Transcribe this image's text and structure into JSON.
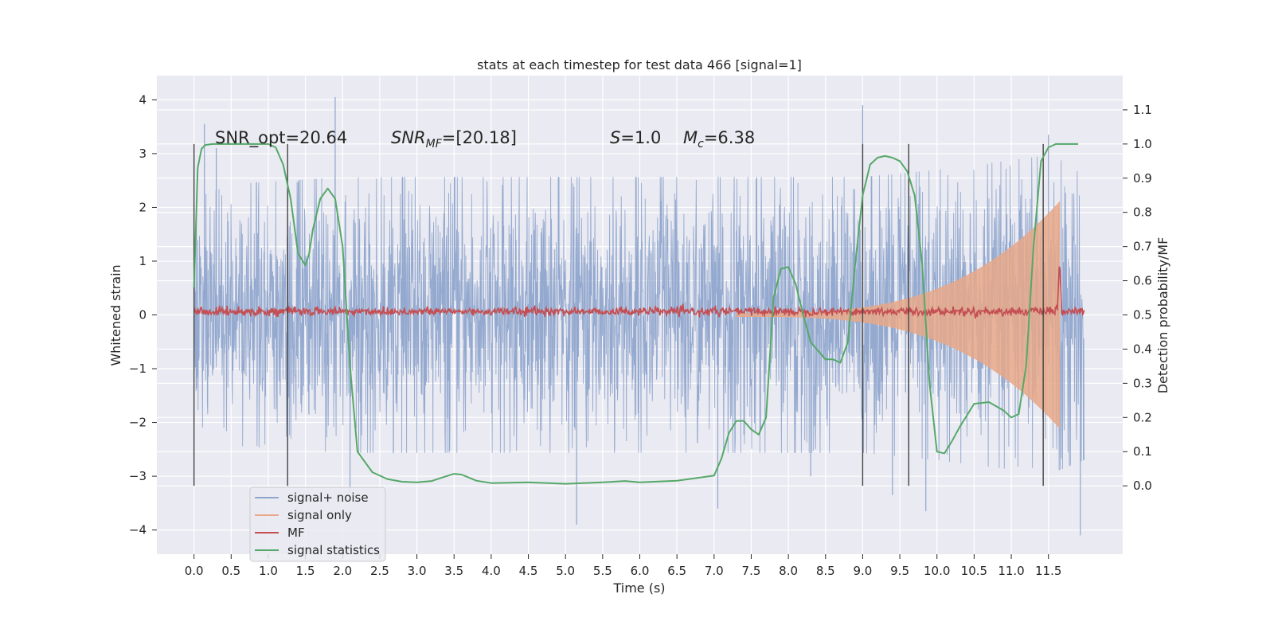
{
  "chart_data": {
    "type": "line",
    "title": "stats at each timestep for test data 466 [signal=1]",
    "xlabel": "Time (s)",
    "ylabel": "Whitened strain",
    "y2label": "Detection probability/MF",
    "xlim": [
      -0.5,
      12.5
    ],
    "ylim": [
      -4.45,
      4.45
    ],
    "y2lim": [
      -0.2,
      1.2
    ],
    "x_ticks": [
      0.0,
      0.5,
      1.0,
      1.5,
      2.0,
      2.5,
      3.0,
      3.5,
      4.0,
      4.5,
      5.0,
      5.5,
      6.0,
      6.5,
      7.0,
      7.5,
      8.0,
      8.5,
      9.0,
      9.5,
      10.0,
      10.5,
      11.0,
      11.5
    ],
    "x_tick_labels": [
      "0.0",
      "0.5",
      "1.0",
      "1.5",
      "2.0",
      "2.5",
      "3.0",
      "3.5",
      "4.0",
      "4.5",
      "5.0",
      "5.5",
      "6.0",
      "6.5",
      "7.0",
      "7.5",
      "8.0",
      "8.5",
      "9.0",
      "9.5",
      "10.0",
      "10.5",
      "11.0",
      "11.5"
    ],
    "y_ticks": [
      4,
      3,
      2,
      1,
      0,
      -1,
      -2,
      -3,
      -4
    ],
    "y_tick_labels": [
      "4",
      "3",
      "2",
      "1",
      "0",
      "−1",
      "−2",
      "−3",
      "−4"
    ],
    "y2_ticks": [
      1.1,
      1.0,
      0.9,
      0.8,
      0.7,
      0.6,
      0.5,
      0.4,
      0.3,
      0.2,
      0.1,
      0.0
    ],
    "y2_tick_labels": [
      "1.1",
      "1.0",
      "0.9",
      "0.8",
      "0.7",
      "0.6",
      "0.5",
      "0.4",
      "0.3",
      "0.2",
      "0.1",
      "0.0"
    ],
    "grid": true,
    "legend_position": "lower-left",
    "annotations": {
      "snr_opt": "SNR_opt=20.64",
      "snr_mf_label": "SNR",
      "snr_mf_sub": "MF",
      "snr_mf_value": "=[20.18]",
      "s_label": "S",
      "s_value": "=1.0",
      "mc_label": "M",
      "mc_sub": "c",
      "mc_value": "=6.38"
    },
    "vertical_markers": [
      0.0,
      1.26,
      9.0,
      9.62,
      11.43
    ],
    "series": [
      {
        "name": "signal+ noise",
        "color": "#8fa5cc",
        "axis": "left",
        "duration": 11.98,
        "envelope": [
          [
            0.0,
            1.6
          ],
          [
            0.5,
            1.8
          ],
          [
            2.0,
            1.9
          ],
          [
            6.0,
            1.9
          ],
          [
            9.0,
            1.9
          ],
          [
            10.0,
            2.0
          ],
          [
            11.5,
            2.2
          ],
          [
            11.98,
            2.0
          ]
        ],
        "peaks": [
          [
            0.14,
            3.55
          ],
          [
            0.3,
            3.1
          ],
          [
            1.9,
            4.05
          ],
          [
            2.1,
            -3.3
          ],
          [
            5.15,
            -3.9
          ],
          [
            7.05,
            -3.6
          ],
          [
            8.3,
            -3.0
          ],
          [
            9.0,
            3.9
          ],
          [
            9.4,
            -3.35
          ],
          [
            9.85,
            -3.65
          ],
          [
            11.5,
            3.35
          ],
          [
            11.93,
            -4.1
          ]
        ]
      },
      {
        "name": "signal only",
        "color": "#e8a888",
        "axis": "left",
        "start": 7.3,
        "end": 11.65,
        "amplitude_at_start": 0.03,
        "amplitude_at_end": 2.1
      },
      {
        "name": "MF",
        "color": "#c44e52",
        "axis": "right",
        "baseline": 0.51,
        "peak_x": 11.65,
        "peak_value": 0.66
      },
      {
        "name": "signal statistics",
        "color": "#55a868",
        "axis": "right",
        "x": [
          0.0,
          0.05,
          0.1,
          0.15,
          0.25,
          0.5,
          0.8,
          1.0,
          1.1,
          1.2,
          1.3,
          1.4,
          1.5,
          1.55,
          1.6,
          1.7,
          1.8,
          1.9,
          2.0,
          2.1,
          2.2,
          2.4,
          2.6,
          2.8,
          3.0,
          3.2,
          3.35,
          3.5,
          3.6,
          3.8,
          4.0,
          4.5,
          5.0,
          5.5,
          5.8,
          6.0,
          6.5,
          7.0,
          7.1,
          7.2,
          7.3,
          7.4,
          7.5,
          7.6,
          7.7,
          7.8,
          7.9,
          8.0,
          8.1,
          8.2,
          8.3,
          8.5,
          8.6,
          8.7,
          8.8,
          8.9,
          9.0,
          9.1,
          9.2,
          9.3,
          9.4,
          9.5,
          9.6,
          9.7,
          9.8,
          9.9,
          10.0,
          10.1,
          10.2,
          10.3,
          10.5,
          10.7,
          10.9,
          11.0,
          11.1,
          11.2,
          11.3,
          11.4,
          11.5,
          11.6,
          11.7,
          11.8,
          11.9
        ],
        "y": [
          0.58,
          0.93,
          0.985,
          0.997,
          1.0,
          1.0,
          1.0,
          1.0,
          0.99,
          0.94,
          0.84,
          0.68,
          0.645,
          0.68,
          0.75,
          0.84,
          0.87,
          0.84,
          0.7,
          0.35,
          0.1,
          0.04,
          0.02,
          0.012,
          0.01,
          0.014,
          0.025,
          0.035,
          0.033,
          0.015,
          0.008,
          0.01,
          0.006,
          0.01,
          0.014,
          0.01,
          0.015,
          0.03,
          0.08,
          0.155,
          0.19,
          0.19,
          0.165,
          0.15,
          0.2,
          0.55,
          0.635,
          0.64,
          0.59,
          0.5,
          0.42,
          0.37,
          0.37,
          0.36,
          0.42,
          0.65,
          0.85,
          0.94,
          0.96,
          0.965,
          0.96,
          0.95,
          0.92,
          0.85,
          0.65,
          0.3,
          0.1,
          0.095,
          0.13,
          0.17,
          0.24,
          0.245,
          0.22,
          0.2,
          0.21,
          0.35,
          0.7,
          0.95,
          0.99,
          1.0,
          1.0,
          1.0,
          1.0
        ]
      }
    ]
  }
}
